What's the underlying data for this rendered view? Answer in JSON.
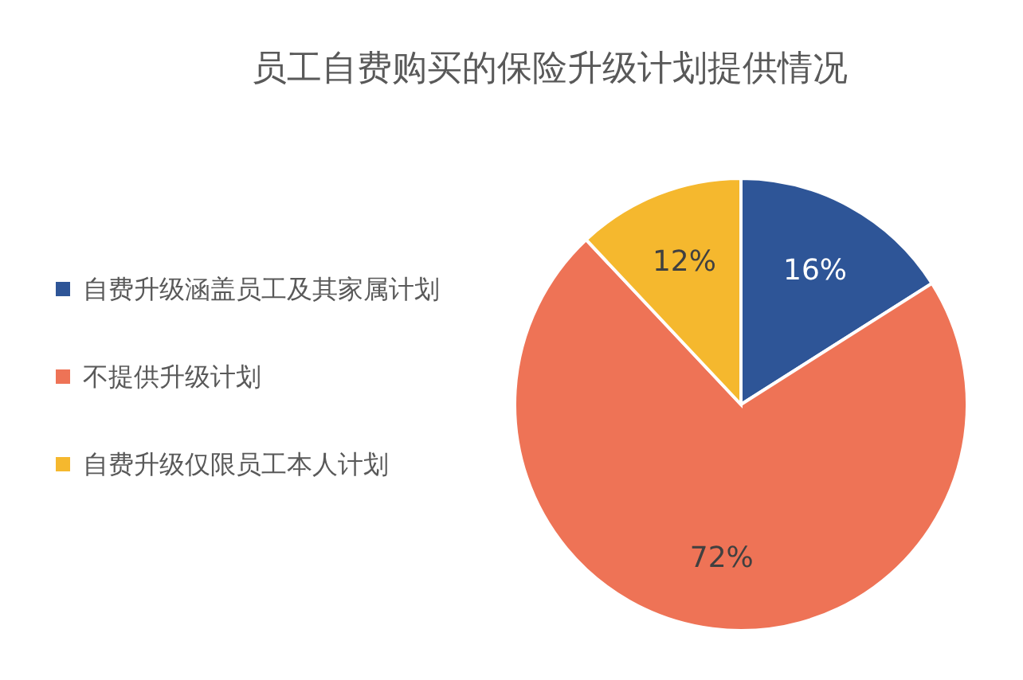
{
  "chart_data": {
    "type": "pie",
    "title": "员工自费购买的保险升级计划提供情况",
    "categories": [
      "自费升级涵盖员工及其家属计划",
      "不提供升级计划",
      "自费升级仅限员工本人计划"
    ],
    "values": [
      16,
      72,
      12
    ],
    "value_labels": [
      "16%",
      "72%",
      "12%"
    ],
    "colors": [
      "#2e5597",
      "#ee7356",
      "#f5b82e"
    ],
    "legend": "left"
  }
}
